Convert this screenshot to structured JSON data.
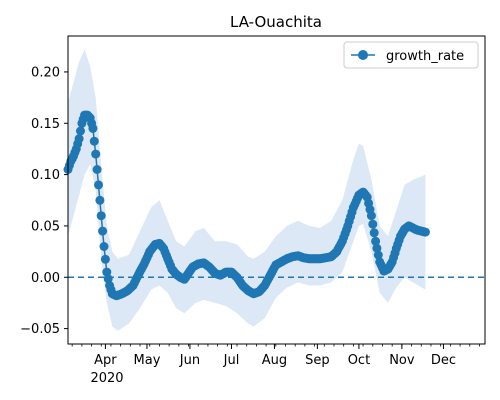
{
  "chart_data": {
    "type": "line",
    "title": "LA-Ouachita",
    "xlabel": "",
    "ylabel": "",
    "x_ticks": [
      "Apr",
      "May",
      "Jun",
      "Jul",
      "Aug",
      "Sep",
      "Oct",
      "Nov",
      "Dec"
    ],
    "x_year_label": "2020",
    "y_ticks": [
      "0.20",
      "0.15",
      "0.10",
      "0.05",
      "0.00",
      "−0.05"
    ],
    "ylim": [
      -0.065,
      0.235
    ],
    "xlim": [
      "2020-03-05",
      "2020-12-31"
    ],
    "legend_position": "top-right",
    "grid": false,
    "reference_line": {
      "y": 0.0,
      "style": "dashed"
    },
    "colors": {
      "series": "#1f77b4",
      "band": "#dce8f5"
    },
    "series": [
      {
        "name": "growth_rate",
        "marker": "circle",
        "points": [
          [
            "2020-03-05",
            0.105
          ],
          [
            "2020-03-07",
            0.113
          ],
          [
            "2020-03-09",
            0.118
          ],
          [
            "2020-03-11",
            0.125
          ],
          [
            "2020-03-13",
            0.135
          ],
          [
            "2020-03-15",
            0.15
          ],
          [
            "2020-03-17",
            0.158
          ],
          [
            "2020-03-19",
            0.158
          ],
          [
            "2020-03-21",
            0.155
          ],
          [
            "2020-03-23",
            0.145
          ],
          [
            "2020-03-25",
            0.12
          ],
          [
            "2020-03-27",
            0.09
          ],
          [
            "2020-03-29",
            0.06
          ],
          [
            "2020-03-31",
            0.03
          ],
          [
            "2020-04-02",
            0.005
          ],
          [
            "2020-04-04",
            -0.008
          ],
          [
            "2020-04-06",
            -0.016
          ],
          [
            "2020-04-09",
            -0.018
          ],
          [
            "2020-04-13",
            -0.016
          ],
          [
            "2020-04-17",
            -0.013
          ],
          [
            "2020-04-21",
            -0.008
          ],
          [
            "2020-04-25",
            0.003
          ],
          [
            "2020-04-29",
            0.013
          ],
          [
            "2020-05-03",
            0.025
          ],
          [
            "2020-05-07",
            0.032
          ],
          [
            "2020-05-10",
            0.033
          ],
          [
            "2020-05-13",
            0.028
          ],
          [
            "2020-05-16",
            0.018
          ],
          [
            "2020-05-19",
            0.008
          ],
          [
            "2020-05-22",
            0.003
          ],
          [
            "2020-05-25",
            0.0
          ],
          [
            "2020-05-28",
            -0.002
          ],
          [
            "2020-05-31",
            0.004
          ],
          [
            "2020-06-03",
            0.01
          ],
          [
            "2020-06-07",
            0.013
          ],
          [
            "2020-06-11",
            0.014
          ],
          [
            "2020-06-15",
            0.01
          ],
          [
            "2020-06-19",
            0.004
          ],
          [
            "2020-06-23",
            0.002
          ],
          [
            "2020-06-27",
            0.005
          ],
          [
            "2020-07-01",
            0.005
          ],
          [
            "2020-07-05",
            0.0
          ],
          [
            "2020-07-09",
            -0.008
          ],
          [
            "2020-07-13",
            -0.013
          ],
          [
            "2020-07-17",
            -0.016
          ],
          [
            "2020-07-21",
            -0.014
          ],
          [
            "2020-07-25",
            -0.008
          ],
          [
            "2020-07-29",
            0.002
          ],
          [
            "2020-08-02",
            0.012
          ],
          [
            "2020-08-06",
            0.015
          ],
          [
            "2020-08-10",
            0.018
          ],
          [
            "2020-08-14",
            0.02
          ],
          [
            "2020-08-18",
            0.021
          ],
          [
            "2020-08-22",
            0.019
          ],
          [
            "2020-08-26",
            0.018
          ],
          [
            "2020-08-30",
            0.018
          ],
          [
            "2020-09-03",
            0.018
          ],
          [
            "2020-09-07",
            0.019
          ],
          [
            "2020-09-11",
            0.02
          ],
          [
            "2020-09-15",
            0.025
          ],
          [
            "2020-09-19",
            0.035
          ],
          [
            "2020-09-23",
            0.05
          ],
          [
            "2020-09-27",
            0.068
          ],
          [
            "2020-10-01",
            0.08
          ],
          [
            "2020-10-04",
            0.083
          ],
          [
            "2020-10-07",
            0.078
          ],
          [
            "2020-10-10",
            0.06
          ],
          [
            "2020-10-13",
            0.035
          ],
          [
            "2020-10-16",
            0.015
          ],
          [
            "2020-10-19",
            0.006
          ],
          [
            "2020-10-22",
            0.008
          ],
          [
            "2020-10-25",
            0.015
          ],
          [
            "2020-10-28",
            0.028
          ],
          [
            "2020-10-31",
            0.04
          ],
          [
            "2020-11-03",
            0.047
          ],
          [
            "2020-11-06",
            0.05
          ],
          [
            "2020-11-09",
            0.048
          ],
          [
            "2020-11-12",
            0.046
          ],
          [
            "2020-11-15",
            0.045
          ],
          [
            "2020-11-18",
            0.044
          ]
        ]
      }
    ],
    "band": [
      [
        "2020-03-05",
        0.04,
        0.17
      ],
      [
        "2020-03-13",
        0.08,
        0.21
      ],
      [
        "2020-03-17",
        0.1,
        0.222
      ],
      [
        "2020-03-21",
        0.11,
        0.205
      ],
      [
        "2020-03-25",
        0.085,
        0.175
      ],
      [
        "2020-03-29",
        0.02,
        0.11
      ],
      [
        "2020-04-02",
        -0.025,
        0.05
      ],
      [
        "2020-04-06",
        -0.048,
        0.025
      ],
      [
        "2020-04-10",
        -0.052,
        0.018
      ],
      [
        "2020-04-18",
        -0.045,
        0.022
      ],
      [
        "2020-04-26",
        -0.03,
        0.045
      ],
      [
        "2020-05-04",
        -0.012,
        0.068
      ],
      [
        "2020-05-10",
        -0.008,
        0.075
      ],
      [
        "2020-05-16",
        -0.015,
        0.055
      ],
      [
        "2020-05-22",
        -0.03,
        0.035
      ],
      [
        "2020-05-28",
        -0.035,
        0.03
      ],
      [
        "2020-06-05",
        -0.025,
        0.045
      ],
      [
        "2020-06-11",
        -0.022,
        0.048
      ],
      [
        "2020-06-19",
        -0.025,
        0.035
      ],
      [
        "2020-06-27",
        -0.028,
        0.035
      ],
      [
        "2020-07-05",
        -0.035,
        0.032
      ],
      [
        "2020-07-13",
        -0.045,
        0.02
      ],
      [
        "2020-07-17",
        -0.048,
        0.018
      ],
      [
        "2020-07-25",
        -0.04,
        0.025
      ],
      [
        "2020-08-02",
        -0.02,
        0.04
      ],
      [
        "2020-08-10",
        -0.01,
        0.05
      ],
      [
        "2020-08-18",
        -0.005,
        0.055
      ],
      [
        "2020-08-26",
        -0.008,
        0.05
      ],
      [
        "2020-09-03",
        -0.008,
        0.048
      ],
      [
        "2020-09-11",
        -0.005,
        0.055
      ],
      [
        "2020-09-19",
        0.005,
        0.075
      ],
      [
        "2020-09-27",
        0.035,
        0.115
      ],
      [
        "2020-10-01",
        0.05,
        0.13
      ],
      [
        "2020-10-04",
        0.052,
        0.128
      ],
      [
        "2020-10-10",
        0.025,
        0.095
      ],
      [
        "2020-10-16",
        -0.015,
        0.05
      ],
      [
        "2020-10-22",
        -0.025,
        0.04
      ],
      [
        "2020-10-28",
        -0.01,
        0.065
      ],
      [
        "2020-11-03",
        0.0,
        0.09
      ],
      [
        "2020-11-09",
        -0.005,
        0.095
      ],
      [
        "2020-11-18",
        -0.012,
        0.1
      ]
    ]
  }
}
